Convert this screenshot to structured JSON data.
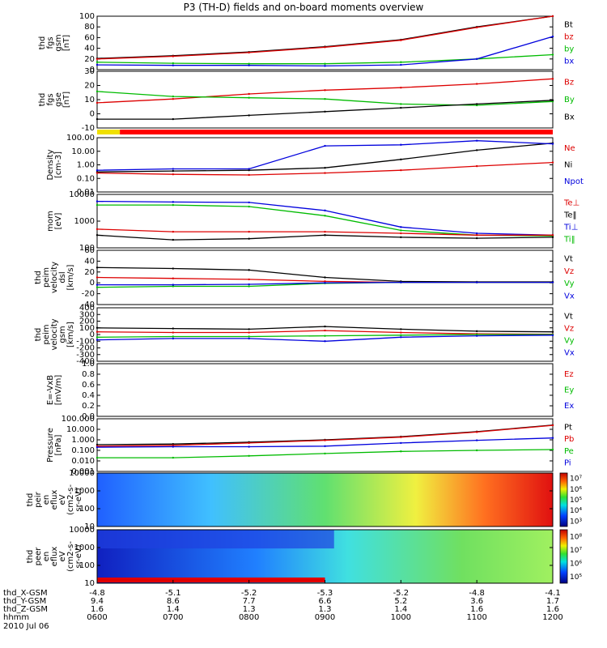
{
  "title": "P3 (TH-D) fields and on-board moments overview",
  "date": "2010 Jul 06",
  "chart_data": [
    {
      "type": "line",
      "ylabel": [
        "thd",
        "fgs",
        "gsm",
        "[nT]"
      ],
      "yticks": [
        "0",
        "20",
        "40",
        "60",
        "80",
        "100"
      ],
      "ylim": [
        0,
        100
      ],
      "legend": [
        {
          "label": "Bt",
          "color": "#000000"
        },
        {
          "label": "bz",
          "color": "#dd0000"
        },
        {
          "label": "by",
          "color": "#00bb00"
        },
        {
          "label": "bx",
          "color": "#0000dd"
        }
      ],
      "x": [
        0,
        1,
        2,
        3,
        4,
        5,
        6
      ],
      "series": [
        {
          "name": "Bt",
          "color": "#000000",
          "values": [
            21,
            26,
            33,
            43,
            56,
            80,
            102
          ]
        },
        {
          "name": "bz",
          "color": "#dd0000",
          "values": [
            20,
            25,
            32,
            42,
            55,
            79,
            101
          ]
        },
        {
          "name": "by",
          "color": "#00bb00",
          "values": [
            14,
            12,
            11,
            11,
            14,
            20,
            28
          ]
        },
        {
          "name": "bx",
          "color": "#0000dd",
          "values": [
            9,
            8,
            8,
            7,
            9,
            20,
            62
          ]
        }
      ]
    },
    {
      "type": "line",
      "ylabel": [
        "thd",
        "fgs",
        "gse",
        "[nT]"
      ],
      "yticks": [
        "-10",
        "0",
        "10",
        "20",
        "30"
      ],
      "ylim": [
        -15,
        30
      ],
      "legend": [
        {
          "label": "Bz",
          "color": "#dd0000"
        },
        {
          "label": "By",
          "color": "#00bb00"
        },
        {
          "label": "Bx",
          "color": "#000000"
        }
      ],
      "x": [
        0,
        1,
        2,
        3,
        4,
        5,
        6
      ],
      "series": [
        {
          "name": "Bz",
          "color": "#dd0000",
          "values": [
            5,
            8,
            12,
            15,
            17,
            20,
            24
          ]
        },
        {
          "name": "By",
          "color": "#00bb00",
          "values": [
            14,
            10,
            9,
            8,
            4,
            3,
            6
          ]
        },
        {
          "name": "Bx",
          "color": "#000000",
          "values": [
            -8,
            -8,
            -5,
            -2,
            1,
            4,
            7
          ]
        }
      ]
    },
    {
      "type": "line",
      "log": true,
      "ylabel": [
        "Density",
        "[cm-3]"
      ],
      "yticks": [
        "0.01",
        "0.10",
        "1.00",
        "10.00",
        "100.00"
      ],
      "ylim": [
        0.01,
        100
      ],
      "legend": [
        {
          "label": "Ne",
          "color": "#dd0000"
        },
        {
          "label": "Ni",
          "color": "#000000"
        },
        {
          "label": "Npot",
          "color": "#0000dd"
        }
      ],
      "x": [
        0,
        1,
        2,
        3,
        4,
        5,
        6
      ],
      "series": [
        {
          "name": "Ni",
          "color": "#000000",
          "values": [
            0.3,
            0.35,
            0.4,
            0.6,
            2.5,
            12,
            40
          ]
        },
        {
          "name": "Ne",
          "color": "#dd0000",
          "values": [
            0.25,
            0.2,
            0.18,
            0.25,
            0.4,
            0.8,
            1.5
          ]
        },
        {
          "name": "Npot",
          "color": "#0000dd",
          "values": [
            0.4,
            0.5,
            0.5,
            25,
            30,
            60,
            35
          ]
        }
      ]
    },
    {
      "type": "line",
      "log": true,
      "ylabel": [
        "mom",
        "[eV]"
      ],
      "yticks": [
        "100",
        "1000",
        "10000"
      ],
      "ylim": [
        100,
        10000
      ],
      "legend": [
        {
          "label": "Te⊥",
          "color": "#dd0000"
        },
        {
          "label": "Te‖",
          "color": "#000000"
        },
        {
          "label": "Ti⊥",
          "color": "#0000dd"
        },
        {
          "label": "Ti‖",
          "color": "#00bb00"
        }
      ],
      "x": [
        0,
        1,
        2,
        3,
        4,
        5,
        6
      ],
      "series": [
        {
          "name": "Ti⊥",
          "color": "#0000dd",
          "values": [
            5500,
            5200,
            5000,
            2500,
            600,
            350,
            300
          ]
        },
        {
          "name": "Ti‖",
          "color": "#00bb00",
          "values": [
            4000,
            4000,
            3500,
            1600,
            450,
            300,
            280
          ]
        },
        {
          "name": "Te⊥",
          "color": "#dd0000",
          "values": [
            500,
            400,
            400,
            400,
            350,
            300,
            300
          ]
        },
        {
          "name": "Te‖",
          "color": "#000000",
          "values": [
            300,
            200,
            220,
            300,
            250,
            230,
            250
          ]
        }
      ]
    },
    {
      "type": "line",
      "ylabel": [
        "thd",
        "peim",
        "velocity",
        "dsl",
        "[km/s]"
      ],
      "yticks": [
        "-40",
        "-20",
        "0",
        "20",
        "40",
        "60"
      ],
      "ylim": [
        -45,
        65
      ],
      "legend": [
        {
          "label": "Vt",
          "color": "#000000"
        },
        {
          "label": "Vz",
          "color": "#dd0000"
        },
        {
          "label": "Vy",
          "color": "#00bb00"
        },
        {
          "label": "Vx",
          "color": "#0000dd"
        }
      ],
      "x": [
        0,
        1,
        2,
        3,
        4,
        5,
        6
      ],
      "series": [
        {
          "name": "Vt",
          "color": "#000000",
          "values": [
            30,
            28,
            25,
            10,
            2,
            1,
            1
          ]
        },
        {
          "name": "Vz",
          "color": "#dd0000",
          "values": [
            10,
            8,
            6,
            2,
            0,
            0,
            0
          ]
        },
        {
          "name": "Vy",
          "color": "#00bb00",
          "values": [
            -10,
            -8,
            -8,
            -2,
            0,
            0,
            0
          ]
        },
        {
          "name": "Vx",
          "color": "#0000dd",
          "values": [
            -5,
            -5,
            -4,
            -1,
            0,
            0,
            0
          ]
        }
      ]
    },
    {
      "type": "line",
      "ylabel": [
        "thd",
        "peim",
        "velocity",
        "gsm",
        "[km/s]"
      ],
      "yticks": [
        "-400",
        "-300",
        "-200",
        "-100",
        "0",
        "100",
        "200",
        "300",
        "400"
      ],
      "ylim": [
        -400,
        400
      ],
      "legend": [
        {
          "label": "Vt",
          "color": "#000000"
        },
        {
          "label": "Vz",
          "color": "#dd0000"
        },
        {
          "label": "Vy",
          "color": "#00bb00"
        },
        {
          "label": "Vx",
          "color": "#0000dd"
        }
      ],
      "x": [
        0,
        1,
        2,
        3,
        4,
        5,
        6
      ],
      "series": [
        {
          "name": "Vt",
          "color": "#000000",
          "values": [
            100,
            90,
            80,
            120,
            80,
            50,
            40
          ]
        },
        {
          "name": "Vz",
          "color": "#dd0000",
          "values": [
            40,
            30,
            30,
            60,
            30,
            10,
            5
          ]
        },
        {
          "name": "Vy",
          "color": "#00bb00",
          "values": [
            -40,
            -30,
            -30,
            -20,
            -10,
            0,
            0
          ]
        },
        {
          "name": "Vx",
          "color": "#0000dd",
          "values": [
            -80,
            -60,
            -60,
            -100,
            -40,
            -20,
            -10
          ]
        }
      ]
    },
    {
      "type": "line",
      "ylabel": [
        "E=-VxB",
        "[mV/m]"
      ],
      "yticks": [
        "0.0",
        "0.2",
        "0.4",
        "0.6",
        "0.8",
        "1.0"
      ],
      "ylim": [
        0,
        1
      ],
      "legend": [
        {
          "label": "Ez",
          "color": "#dd0000"
        },
        {
          "label": "Ey",
          "color": "#00bb00"
        },
        {
          "label": "Ex",
          "color": "#0000dd"
        }
      ],
      "x": [],
      "series": []
    },
    {
      "type": "line",
      "log": true,
      "ylabel": [
        "Pressure",
        "[nPa]"
      ],
      "yticks": [
        "0.001",
        "0.010",
        "0.100",
        "1.000",
        "10.000",
        "100.000"
      ],
      "ylim": [
        0.001,
        100
      ],
      "legend": [
        {
          "label": "Pt",
          "color": "#000000"
        },
        {
          "label": "Pb",
          "color": "#dd0000"
        },
        {
          "label": "Pe",
          "color": "#00bb00"
        },
        {
          "label": "Pi",
          "color": "#0000dd"
        }
      ],
      "x": [
        0,
        1,
        2,
        3,
        4,
        5,
        6
      ],
      "series": [
        {
          "name": "Pt",
          "color": "#000000",
          "values": [
            0.35,
            0.4,
            0.6,
            1,
            2,
            6,
            25
          ]
        },
        {
          "name": "Pb",
          "color": "#dd0000",
          "values": [
            0.25,
            0.3,
            0.5,
            0.9,
            1.8,
            5.5,
            24
          ]
        },
        {
          "name": "Pi",
          "color": "#0000dd",
          "values": [
            0.2,
            0.22,
            0.22,
            0.25,
            0.5,
            0.9,
            1.5
          ]
        },
        {
          "name": "Pe",
          "color": "#00bb00",
          "values": [
            0.02,
            0.02,
            0.03,
            0.05,
            0.08,
            0.1,
            0.12
          ]
        }
      ]
    },
    {
      "type": "heatmap",
      "log": true,
      "ylabel": [
        "thd",
        "peir",
        "en",
        "eflux",
        "eV",
        "(cm2-s-",
        "sr-eV)"
      ],
      "yticks": [
        "10",
        "100",
        "1000",
        "10000"
      ],
      "ylim": [
        10,
        10000
      ],
      "colorbar": {
        "ticks": [
          "10³",
          "10⁴",
          "10⁵",
          "10⁶",
          "10⁷"
        ]
      }
    },
    {
      "type": "heatmap",
      "log": true,
      "ylabel": [
        "thd",
        "peer",
        "en",
        "eflux",
        "eV",
        "(cm2-s-",
        "sr-eV)"
      ],
      "yticks": [
        "10",
        "100",
        "1000",
        "10000"
      ],
      "ylim": [
        10,
        10000
      ],
      "colorbar": {
        "ticks": [
          "10⁵",
          "10⁶",
          "10⁷",
          "10⁸"
        ]
      }
    }
  ],
  "xaxis": {
    "rows": [
      {
        "label": "thd_X-GSM",
        "values": [
          "-4.8",
          "-5.1",
          "-5.2",
          "-5.3",
          "-5.2",
          "-4.8",
          "-4.1"
        ]
      },
      {
        "label": "thd_Y-GSM",
        "values": [
          "9.4",
          "8.6",
          "7.7",
          "6.6",
          "5.2",
          "3.6",
          "1.7"
        ]
      },
      {
        "label": "thd_Z-GSM",
        "values": [
          "1.6",
          "1.4",
          "1.3",
          "1.3",
          "1.4",
          "1.6",
          "1.6"
        ]
      },
      {
        "label": "hhmm",
        "values": [
          "0600",
          "0700",
          "0800",
          "0900",
          "1000",
          "1100",
          "1200"
        ]
      }
    ]
  }
}
